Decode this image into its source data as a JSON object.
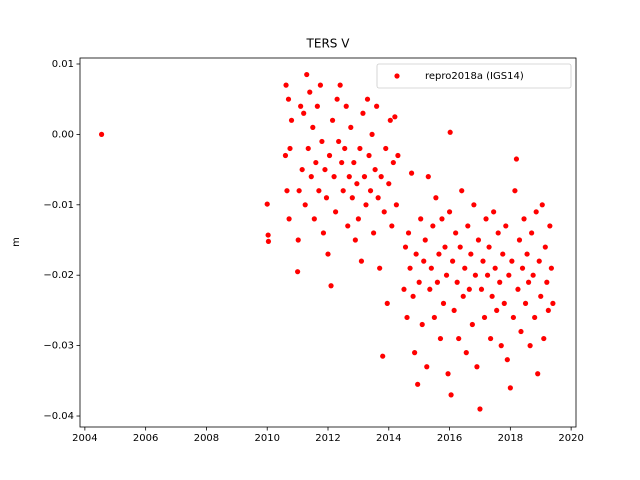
{
  "chart_data": {
    "type": "scatter",
    "title": "TERS V",
    "y_label": "m",
    "xlim": [
      2003.84,
      2020.16
    ],
    "ylim": [
      -0.04156,
      0.01085
    ],
    "xticks": [
      2004,
      2006,
      2008,
      2010,
      2012,
      2014,
      2016,
      2018,
      2020
    ],
    "yticks": [
      {
        "value": 0.01,
        "label": "0.01"
      },
      {
        "value": 0,
        "label": "0.00"
      },
      {
        "value": -0.01,
        "label": "−0.01"
      },
      {
        "value": -0.02,
        "label": "−0.02"
      },
      {
        "value": -0.03,
        "label": "−0.03"
      },
      {
        "value": -0.04,
        "label": "−0.04"
      }
    ],
    "legend": "upper right",
    "series": [
      {
        "name": "repro2018a (IGS14)",
        "color": "#ff0000",
        "x": [
          2004.55,
          2010.0,
          2010.03,
          2010.04,
          2010.6,
          2010.62,
          2010.65,
          2010.7,
          2010.72,
          2010.75,
          2010.8,
          2011.0,
          2011.02,
          2011.05,
          2011.1,
          2011.15,
          2011.2,
          2011.25,
          2011.3,
          2011.35,
          2011.4,
          2011.45,
          2011.5,
          2011.55,
          2011.6,
          2011.65,
          2011.7,
          2011.75,
          2011.8,
          2011.85,
          2011.9,
          2011.95,
          2012.0,
          2012.05,
          2012.1,
          2012.15,
          2012.2,
          2012.25,
          2012.3,
          2012.35,
          2012.4,
          2012.45,
          2012.5,
          2012.55,
          2012.6,
          2012.65,
          2012.7,
          2012.75,
          2012.8,
          2012.85,
          2012.9,
          2012.95,
          2013.0,
          2013.05,
          2013.1,
          2013.15,
          2013.2,
          2013.25,
          2013.3,
          2013.35,
          2013.4,
          2013.45,
          2013.5,
          2013.55,
          2013.6,
          2013.65,
          2013.7,
          2013.75,
          2013.8,
          2013.85,
          2013.9,
          2013.95,
          2014.0,
          2014.05,
          2014.1,
          2014.15,
          2014.2,
          2014.25,
          2014.3,
          2014.5,
          2014.55,
          2014.6,
          2014.65,
          2014.7,
          2014.75,
          2014.8,
          2014.85,
          2014.9,
          2014.95,
          2015.0,
          2015.05,
          2015.1,
          2015.15,
          2015.2,
          2015.25,
          2015.3,
          2015.35,
          2015.4,
          2015.45,
          2015.5,
          2015.55,
          2015.6,
          2015.65,
          2015.7,
          2015.75,
          2015.8,
          2015.85,
          2015.9,
          2015.95,
          2016.0,
          2016.02,
          2016.05,
          2016.1,
          2016.15,
          2016.2,
          2016.25,
          2016.3,
          2016.35,
          2016.4,
          2016.45,
          2016.5,
          2016.55,
          2016.6,
          2016.65,
          2016.7,
          2016.75,
          2016.8,
          2016.85,
          2016.9,
          2016.95,
          2017.0,
          2017.05,
          2017.1,
          2017.15,
          2017.2,
          2017.25,
          2017.3,
          2017.35,
          2017.4,
          2017.45,
          2017.5,
          2017.55,
          2017.6,
          2017.65,
          2017.7,
          2017.75,
          2017.8,
          2017.85,
          2017.9,
          2017.95,
          2018.0,
          2018.05,
          2018.1,
          2018.15,
          2018.2,
          2018.25,
          2018.3,
          2018.35,
          2018.4,
          2018.45,
          2018.5,
          2018.55,
          2018.6,
          2018.65,
          2018.7,
          2018.75,
          2018.8,
          2018.85,
          2018.9,
          2018.95,
          2019.0,
          2019.05,
          2019.1,
          2019.15,
          2019.2,
          2019.25,
          2019.3,
          2019.35,
          2019.4
        ],
        "values": [
          0.0,
          -0.0099,
          -0.0143,
          -0.0152,
          -0.003,
          0.007,
          -0.008,
          0.005,
          -0.012,
          -0.002,
          0.002,
          -0.0195,
          -0.015,
          -0.008,
          0.004,
          -0.005,
          0.003,
          -0.01,
          0.0085,
          -0.002,
          0.006,
          -0.006,
          0.001,
          -0.012,
          -0.004,
          0.004,
          -0.008,
          0.007,
          -0.001,
          -0.014,
          -0.005,
          -0.009,
          -0.017,
          -0.003,
          -0.0215,
          0.002,
          -0.006,
          -0.011,
          0.005,
          -0.001,
          0.007,
          -0.004,
          -0.008,
          -0.002,
          0.004,
          -0.013,
          -0.006,
          0.001,
          -0.009,
          -0.004,
          -0.015,
          -0.007,
          -0.012,
          -0.002,
          -0.018,
          0.003,
          -0.006,
          -0.01,
          0.005,
          -0.003,
          -0.008,
          0.0,
          -0.014,
          -0.005,
          0.004,
          -0.009,
          -0.019,
          -0.006,
          -0.0315,
          -0.011,
          -0.002,
          -0.024,
          -0.007,
          0.002,
          -0.013,
          -0.004,
          0.0025,
          -0.01,
          -0.003,
          -0.022,
          -0.016,
          -0.026,
          -0.014,
          -0.019,
          -0.0055,
          -0.023,
          -0.031,
          -0.017,
          -0.0355,
          -0.021,
          -0.012,
          -0.027,
          -0.018,
          -0.015,
          -0.033,
          -0.006,
          -0.022,
          -0.019,
          -0.013,
          -0.026,
          -0.009,
          -0.021,
          -0.017,
          -0.029,
          -0.012,
          -0.024,
          -0.016,
          -0.02,
          -0.034,
          -0.011,
          0.0003,
          -0.037,
          -0.018,
          -0.025,
          -0.014,
          -0.021,
          -0.029,
          -0.016,
          -0.008,
          -0.023,
          -0.019,
          -0.031,
          -0.013,
          -0.022,
          -0.017,
          -0.027,
          -0.01,
          -0.02,
          -0.033,
          -0.015,
          -0.039,
          -0.022,
          -0.018,
          -0.026,
          -0.012,
          -0.02,
          -0.016,
          -0.029,
          -0.023,
          -0.011,
          -0.019,
          -0.025,
          -0.014,
          -0.021,
          -0.03,
          -0.017,
          -0.024,
          -0.013,
          -0.032,
          -0.02,
          -0.036,
          -0.018,
          -0.026,
          -0.008,
          -0.0035,
          -0.022,
          -0.015,
          -0.028,
          -0.019,
          -0.012,
          -0.024,
          -0.017,
          -0.021,
          -0.03,
          -0.014,
          -0.02,
          -0.026,
          -0.011,
          -0.034,
          -0.018,
          -0.023,
          -0.01,
          -0.029,
          -0.016,
          -0.021,
          -0.025,
          -0.013,
          -0.019,
          -0.024
        ]
      }
    ]
  }
}
